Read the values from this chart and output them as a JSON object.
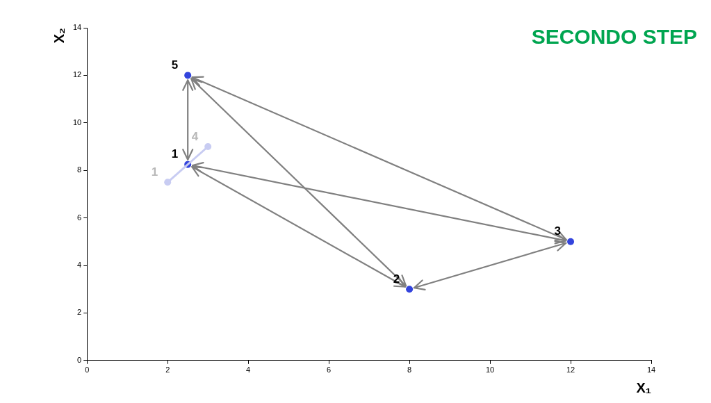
{
  "chart_data": {
    "type": "scatter",
    "title": "SECONDO STEP",
    "xlabel": "X₁",
    "ylabel": "X₂",
    "xlim": [
      0,
      14
    ],
    "xticks": [
      0,
      2,
      4,
      6,
      8,
      10,
      12,
      14
    ],
    "ylim": [
      0,
      14
    ],
    "yticks": [
      0,
      2,
      4,
      6,
      8,
      10,
      12,
      14
    ],
    "grid": false,
    "legend": false,
    "marker": "circle",
    "series": [
      {
        "color": "#3344dd",
        "x": [
          2.5,
          8,
          12,
          2.5
        ],
        "values": [
          8.25,
          3,
          5,
          12
        ]
      },
      {
        "type": "line",
        "color": "#c8ccf2",
        "x": [
          2,
          3
        ],
        "values": [
          7.5,
          9
        ]
      }
    ],
    "annotations": [
      {
        "text": "1",
        "x": 2.5,
        "y": 8.25
      },
      {
        "text": "2",
        "x": 8,
        "y": 3
      },
      {
        "text": "3",
        "x": 12,
        "y": 5
      },
      {
        "text": "5",
        "x": 2.5,
        "y": 12
      },
      {
        "text": "1",
        "x": 2,
        "y": 7.5
      },
      {
        "text": "4",
        "x": 3,
        "y": 9
      }
    ]
  }
}
